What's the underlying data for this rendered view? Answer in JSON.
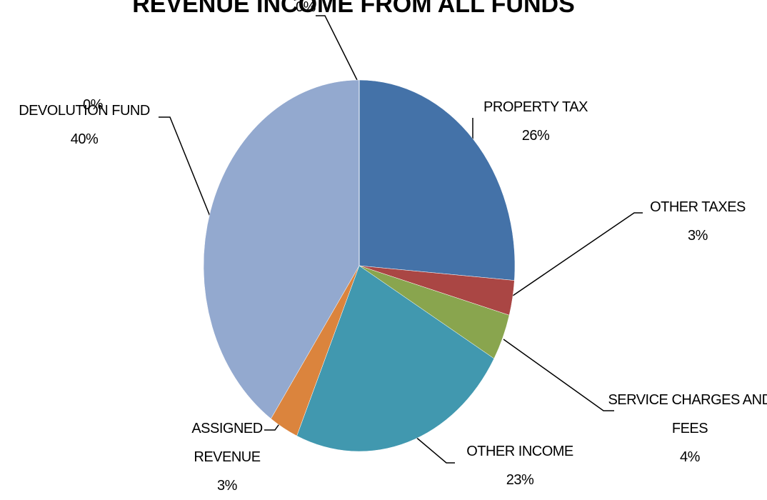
{
  "chart_data": {
    "type": "pie",
    "title": "REVENUE INCOME FROM ALL FUNDS",
    "categories": [
      "PROPERTY TAX",
      "OTHER TAXES",
      "SERVICE CHARGES AND FEES",
      "OTHER INCOME",
      "ASSIGNED REVENUE",
      "DEVOLUTION FUND",
      null,
      null
    ],
    "values": [
      26,
      3,
      4,
      23,
      3,
      40,
      0,
      0
    ],
    "value_labels": [
      "26%",
      "3%",
      "4%",
      "23%",
      "3%",
      "40%",
      "0%",
      "0%"
    ],
    "colors": [
      "#4472a8",
      "#aa4644",
      "#89a54e",
      "#4198af",
      "#db843d",
      "#93a9cf",
      "#b9cde5",
      "#d99694"
    ]
  }
}
